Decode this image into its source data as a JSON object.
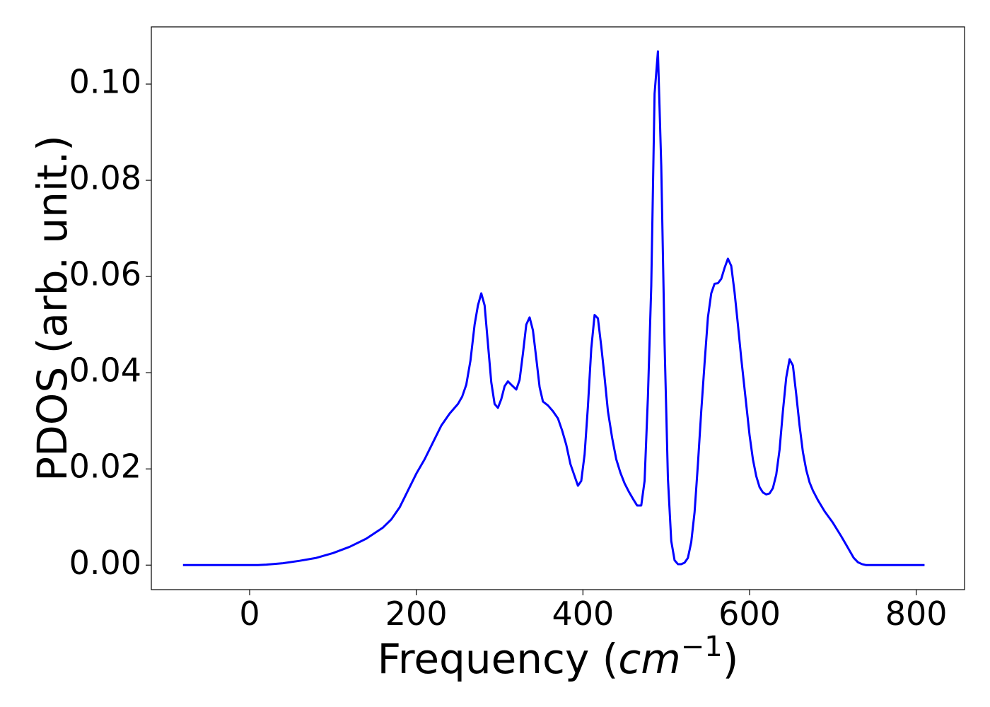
{
  "chart_data": {
    "type": "line",
    "x_label": {
      "text": "Frequency (",
      "math": "cm",
      "sup": "−1",
      "close": ")"
    },
    "y_label": "PDOS (arb. unit.)",
    "xlim": [
      -118,
      858
    ],
    "ylim": [
      -0.0051,
      0.1119
    ],
    "xticks": [
      0,
      200,
      400,
      600,
      800
    ],
    "yticks": [
      {
        "value": 0,
        "label": "0.00"
      },
      {
        "value": 0.02,
        "label": "0.02"
      },
      {
        "value": 0.04,
        "label": "0.04"
      },
      {
        "value": 0.06,
        "label": "0.06"
      },
      {
        "value": 0.08,
        "label": "0.08"
      },
      {
        "value": 0.1,
        "label": "0.10"
      }
    ],
    "grid": false,
    "series": [
      {
        "color": "#0000ff",
        "x": [
          -80,
          0,
          10,
          20,
          40,
          60,
          80,
          100,
          120,
          140,
          160,
          170,
          180,
          190,
          200,
          210,
          220,
          230,
          240,
          250,
          255,
          260,
          265,
          270,
          274,
          278,
          282,
          286,
          290,
          294,
          298,
          302,
          306,
          310,
          314,
          320,
          324,
          328,
          332,
          336,
          340,
          344,
          348,
          352,
          358,
          364,
          370,
          375,
          380,
          385,
          390,
          394,
          398,
          402,
          406,
          410,
          414,
          418,
          422,
          426,
          430,
          435,
          440,
          445,
          450,
          455,
          460,
          465,
          470,
          474,
          478,
          482,
          486,
          490,
          494,
          498,
          502,
          506,
          510,
          514,
          518,
          522,
          526,
          530,
          534,
          538,
          542,
          546,
          550,
          554,
          558,
          562,
          566,
          570,
          574,
          578,
          582,
          586,
          590,
          595,
          600,
          604,
          608,
          612,
          616,
          620,
          624,
          628,
          632,
          636,
          640,
          644,
          648,
          652,
          656,
          660,
          664,
          668,
          672,
          676,
          682,
          690,
          700,
          710,
          715,
          720,
          725,
          730,
          735,
          740,
          760,
          800,
          810
        ],
        "values": [
          0,
          0,
          0,
          0.0001,
          0.0004,
          0.0009,
          0.0015,
          0.0025,
          0.0038,
          0.0055,
          0.0078,
          0.0095,
          0.012,
          0.0155,
          0.019,
          0.022,
          0.0255,
          0.029,
          0.0315,
          0.0335,
          0.035,
          0.0375,
          0.0425,
          0.05,
          0.054,
          0.0565,
          0.054,
          0.046,
          0.038,
          0.0335,
          0.0327,
          0.0345,
          0.0372,
          0.0382,
          0.0375,
          0.0365,
          0.0385,
          0.044,
          0.05,
          0.0515,
          0.0488,
          0.043,
          0.037,
          0.034,
          0.0332,
          0.032,
          0.0305,
          0.028,
          0.025,
          0.021,
          0.0185,
          0.0165,
          0.0175,
          0.023,
          0.033,
          0.045,
          0.052,
          0.0513,
          0.0455,
          0.039,
          0.032,
          0.0265,
          0.022,
          0.0192,
          0.017,
          0.0153,
          0.0138,
          0.0124,
          0.0124,
          0.0175,
          0.035,
          0.058,
          0.098,
          0.1068,
          0.083,
          0.046,
          0.018,
          0.005,
          0.001,
          0.0002,
          0.0002,
          0.0005,
          0.0015,
          0.0048,
          0.011,
          0.021,
          0.032,
          0.042,
          0.0515,
          0.0565,
          0.0585,
          0.0586,
          0.0595,
          0.0618,
          0.0637,
          0.0622,
          0.0567,
          0.05,
          0.043,
          0.035,
          0.027,
          0.022,
          0.0185,
          0.0162,
          0.0151,
          0.0147,
          0.0149,
          0.016,
          0.0188,
          0.024,
          0.032,
          0.039,
          0.0428,
          0.0415,
          0.0355,
          0.029,
          0.0235,
          0.0198,
          0.0172,
          0.0155,
          0.0135,
          0.0112,
          0.0088,
          0.006,
          0.0045,
          0.003,
          0.0015,
          0.0006,
          0.0002,
          0,
          0,
          0,
          0
        ]
      }
    ]
  }
}
